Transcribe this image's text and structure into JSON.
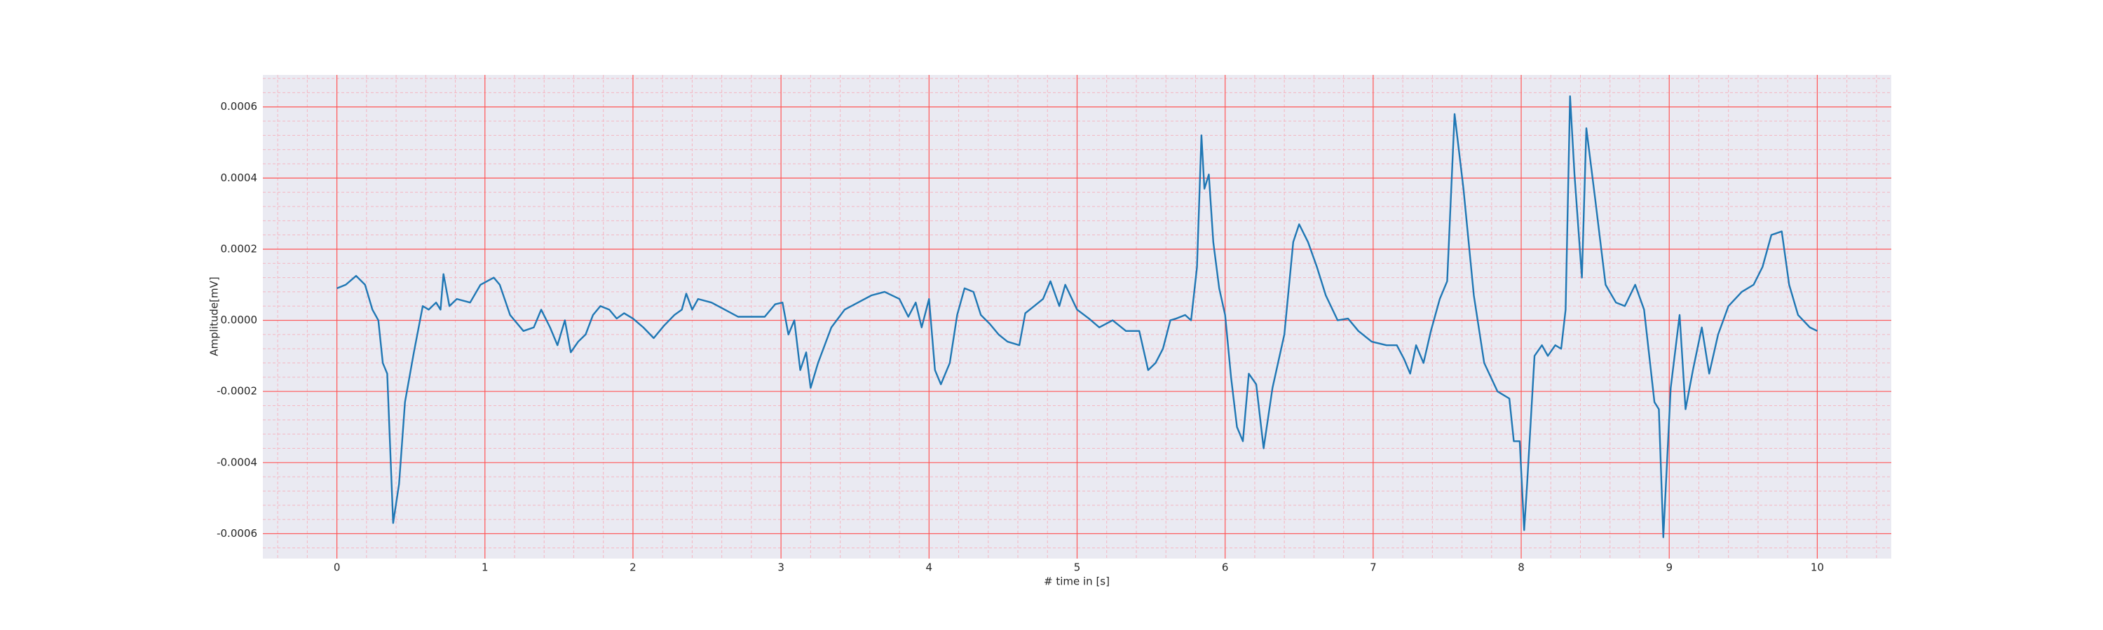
{
  "chart_data": {
    "type": "line",
    "xlabel": "# time in [s]",
    "ylabel": "Amplitude[mV]",
    "xlim": [
      -0.5,
      10.5
    ],
    "ylim": [
      -0.00067,
      0.00069
    ],
    "xticks": [
      0,
      1,
      2,
      3,
      4,
      5,
      6,
      7,
      8,
      9,
      10
    ],
    "yticks": [
      -0.0006,
      -0.0004,
      -0.0002,
      {
        "value": 0,
        "label": "0.0000"
      },
      0.0002,
      0.0004,
      0.0006
    ],
    "grid": true,
    "minor_grid": true,
    "background": "#eaeaf2",
    "series": [
      {
        "name": "Amplitude",
        "color": "#1f77b4",
        "x": [
          0,
          0.06,
          0.13,
          0.19,
          0.24,
          0.28,
          0.31,
          0.34,
          0.38,
          0.42,
          0.46,
          0.52,
          0.58,
          0.62,
          0.67,
          0.7,
          0.72,
          0.76,
          0.81,
          0.9,
          0.97,
          1.06,
          1.1,
          1.17,
          1.26,
          1.33,
          1.38,
          1.44,
          1.49,
          1.54,
          1.58,
          1.63,
          1.68,
          1.73,
          1.78,
          1.84,
          1.89,
          1.94,
          2.0,
          2.07,
          2.14,
          2.21,
          2.28,
          2.33,
          2.36,
          2.4,
          2.44,
          2.53,
          2.62,
          2.71,
          2.8,
          2.89,
          2.96,
          3.01,
          3.05,
          3.09,
          3.13,
          3.17,
          3.2,
          3.25,
          3.34,
          3.43,
          3.52,
          3.61,
          3.7,
          3.8,
          3.86,
          3.91,
          3.95,
          4.0,
          4.04,
          4.08,
          4.14,
          4.19,
          4.24,
          4.3,
          4.35,
          4.41,
          4.47,
          4.53,
          4.61,
          4.65,
          4.71,
          4.77,
          4.82,
          4.88,
          4.92,
          5.0,
          5.08,
          5.15,
          5.24,
          5.33,
          5.42,
          5.48,
          5.53,
          5.58,
          5.63,
          5.67,
          5.73,
          5.77,
          5.81,
          5.84,
          5.86,
          5.89,
          5.92,
          5.96,
          6.0,
          6.04,
          6.08,
          6.12,
          6.16,
          6.21,
          6.26,
          6.32,
          6.4,
          6.46,
          6.5,
          6.56,
          6.62,
          6.68,
          6.76,
          6.83,
          6.9,
          6.99,
          7.09,
          7.16,
          7.21,
          7.25,
          7.29,
          7.34,
          7.39,
          7.45,
          7.5,
          7.55,
          7.61,
          7.68,
          7.75,
          7.84,
          7.92,
          7.95,
          7.99,
          8.02,
          8.04,
          8.09,
          8.14,
          8.18,
          8.23,
          8.27,
          8.3,
          8.33,
          8.36,
          8.41,
          8.44,
          8.5,
          8.57,
          8.64,
          8.7,
          8.77,
          8.83,
          8.9,
          8.93,
          8.96,
          9.01,
          9.07,
          9.11,
          9.16,
          9.22,
          9.27,
          9.33,
          9.4,
          9.49,
          9.57,
          9.63,
          9.69,
          9.76,
          9.81,
          9.87,
          9.95,
          10.0
        ],
        "values": [
          9e-05,
          0.0001,
          0.000125,
          0.0001,
          3e-05,
          0,
          -0.00012,
          -0.00015,
          -0.00057,
          -0.00046,
          -0.00023,
          -9e-05,
          4e-05,
          3e-05,
          5e-05,
          3e-05,
          0.00013,
          4e-05,
          6e-05,
          5e-05,
          0.0001,
          0.00012,
          0.0001,
          1.5e-05,
          -3e-05,
          -2e-05,
          3e-05,
          -2e-05,
          -7e-05,
          0,
          -9e-05,
          -6e-05,
          -4e-05,
          1.5e-05,
          4e-05,
          3e-05,
          5e-06,
          2e-05,
          5e-06,
          -2e-05,
          -5e-05,
          -1.5e-05,
          1.5e-05,
          3e-05,
          7.5e-05,
          3e-05,
          6e-05,
          5e-05,
          3e-05,
          1e-05,
          1e-05,
          1e-05,
          4.5e-05,
          5e-05,
          -4e-05,
          0,
          -0.00014,
          -9e-05,
          -0.00019,
          -0.00012,
          -2e-05,
          3e-05,
          5e-05,
          7e-05,
          8e-05,
          6e-05,
          1e-05,
          5e-05,
          -2e-05,
          6e-05,
          -0.00014,
          -0.00018,
          -0.00012,
          1.5e-05,
          9e-05,
          8e-05,
          1.5e-05,
          -1e-05,
          -4e-05,
          -6e-05,
          -7e-05,
          2e-05,
          4e-05,
          6e-05,
          0.00011,
          4e-05,
          0.0001,
          3e-05,
          5e-06,
          -2e-05,
          0,
          -3e-05,
          -3e-05,
          -0.00014,
          -0.00012,
          -8e-05,
          0,
          5e-06,
          1.5e-05,
          0,
          0.00015,
          0.00052,
          0.00037,
          0.00041,
          0.00022,
          9e-05,
          1.5e-05,
          -0.00016,
          -0.0003,
          -0.00034,
          -0.00015,
          -0.00018,
          -0.00036,
          -0.00019,
          -4e-05,
          0.00022,
          0.00027,
          0.00022,
          0.00015,
          7e-05,
          0,
          5e-06,
          -3e-05,
          -6e-05,
          -7e-05,
          -7e-05,
          -0.00011,
          -0.00015,
          -7e-05,
          -0.00012,
          -3e-05,
          6e-05,
          0.00011,
          0.00058,
          0.00037,
          7e-05,
          -0.00012,
          -0.0002,
          -0.00022,
          -0.00034,
          -0.00034,
          -0.00059,
          -0.00046,
          -0.0001,
          -7e-05,
          -0.0001,
          -7e-05,
          -8e-05,
          3e-05,
          0.00063,
          0.00041,
          0.00012,
          0.00054,
          0.00034,
          0.0001,
          5e-05,
          4e-05,
          0.0001,
          3e-05,
          -0.00023,
          -0.00025,
          -0.00061,
          -0.00019,
          1.5e-05,
          -0.00025,
          -0.00014,
          -2e-05,
          -0.00015,
          -4e-05,
          4e-05,
          8e-05,
          0.0001,
          0.00015,
          0.00024,
          0.00025,
          0.0001,
          1.5e-05,
          -2e-05,
          -3e-05
        ]
      }
    ]
  }
}
